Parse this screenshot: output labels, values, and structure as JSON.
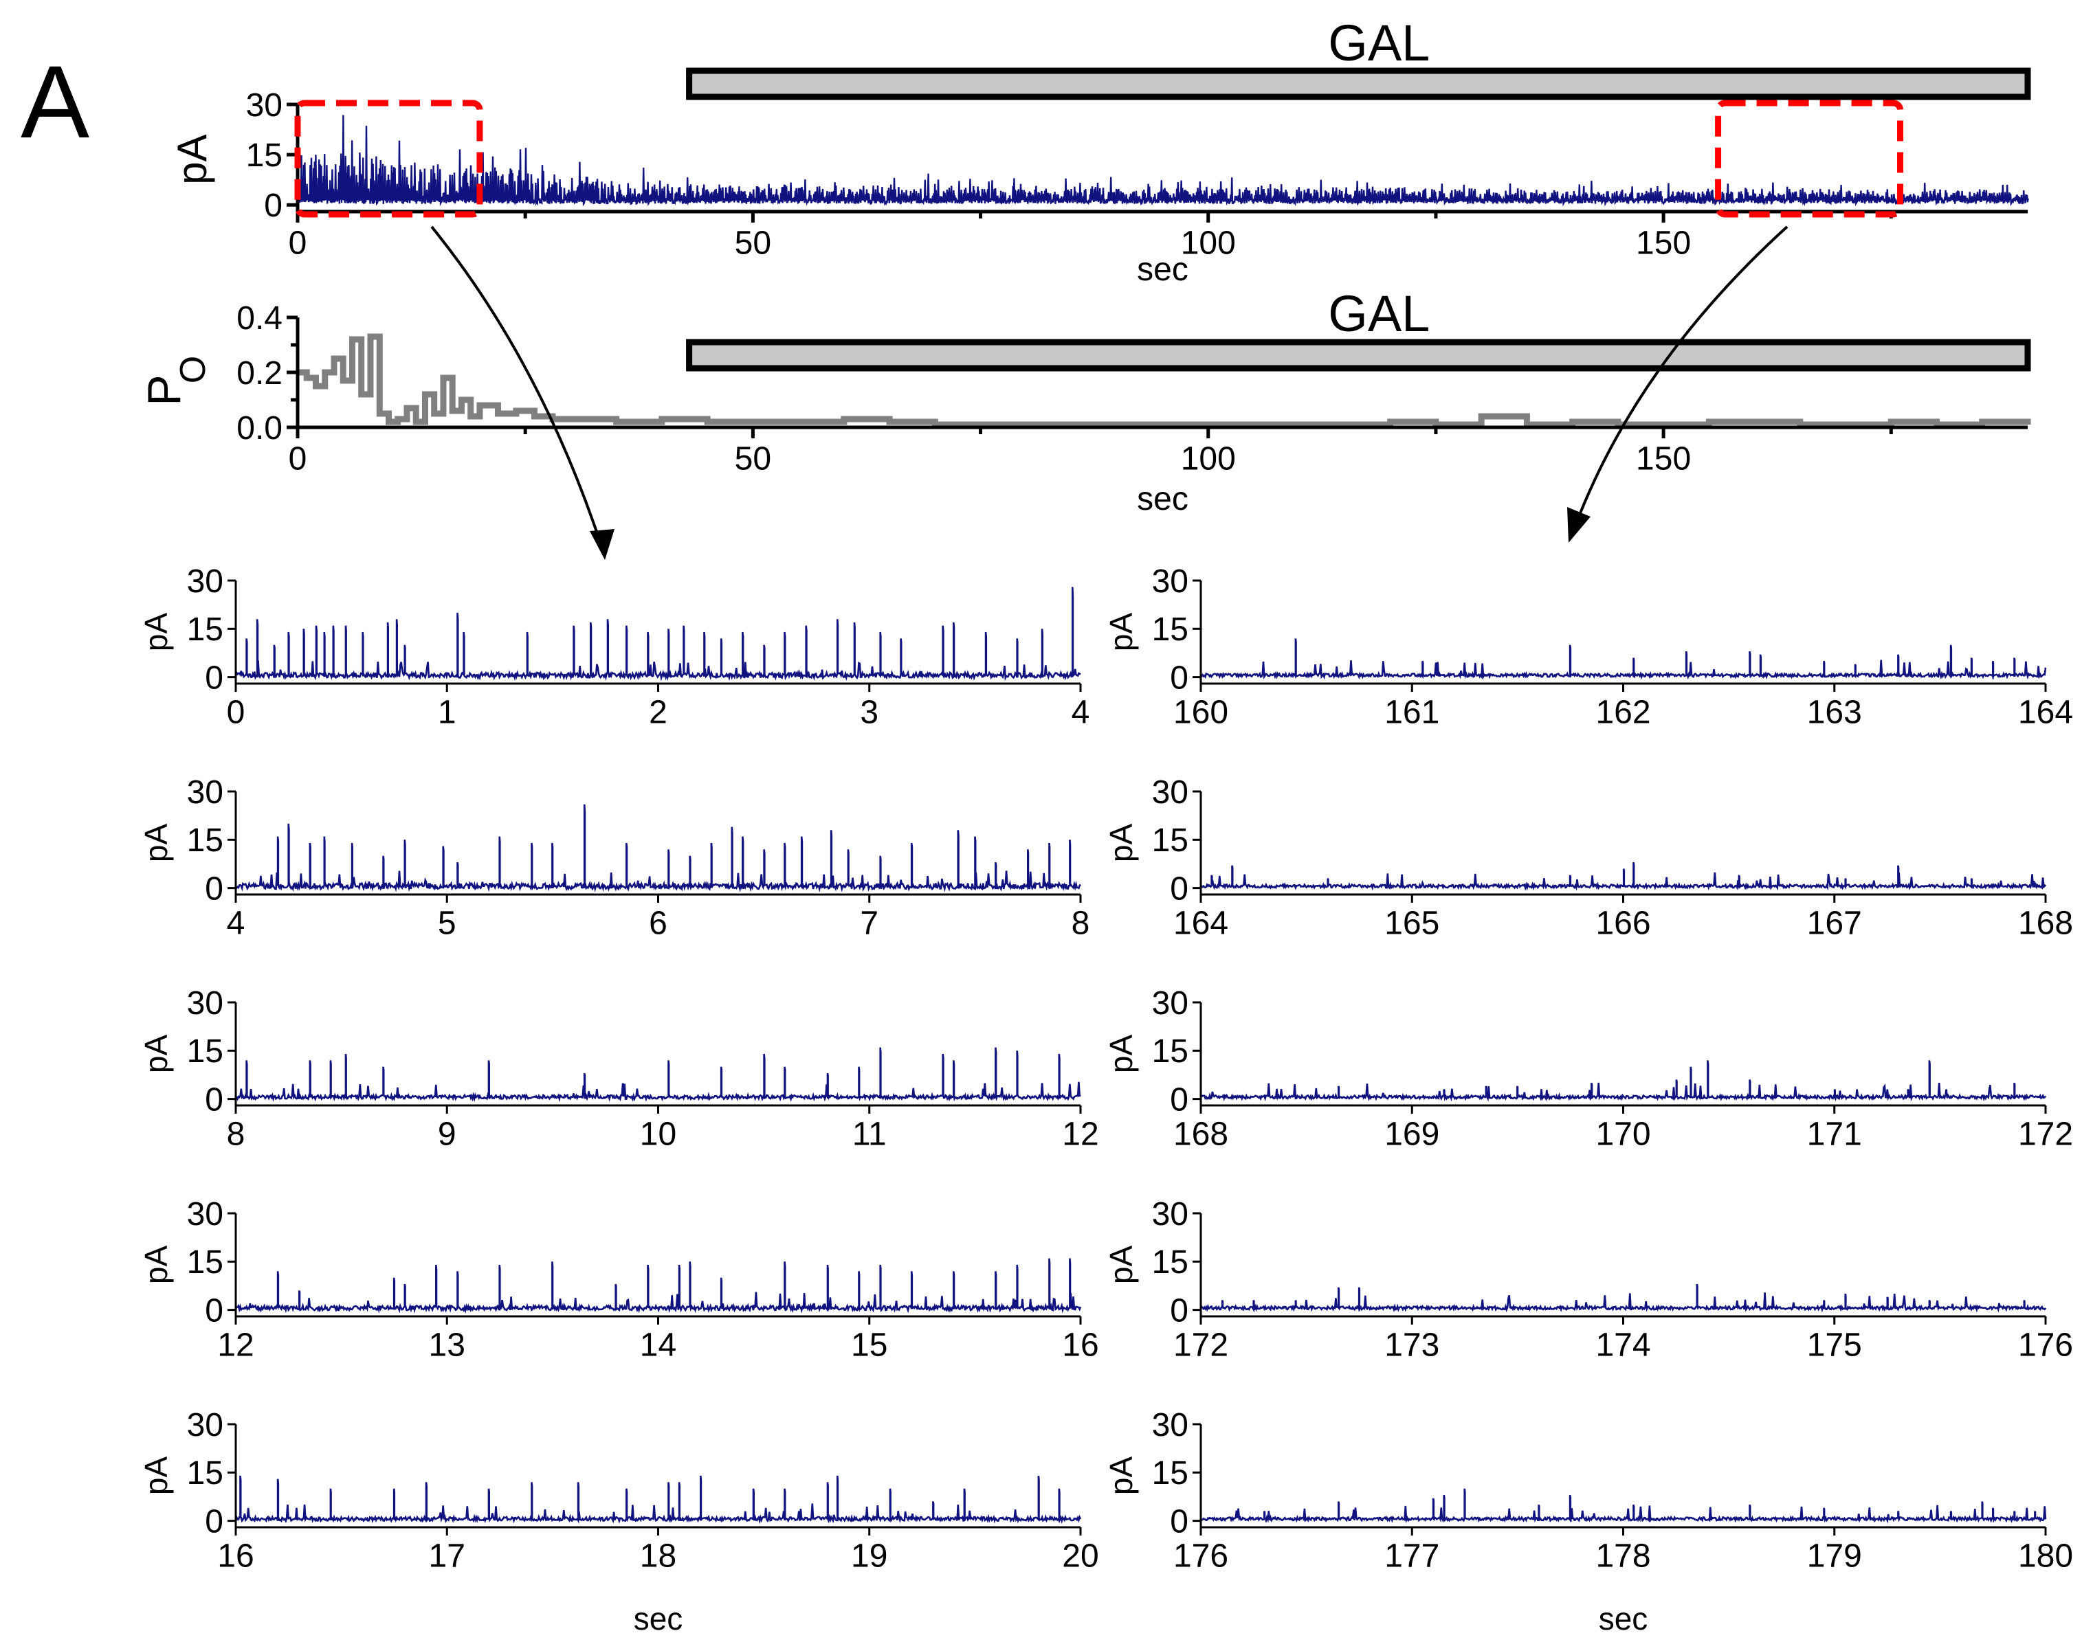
{
  "panel_letter": "A",
  "colors": {
    "trace": "#0f127f",
    "po_trace": "#808080",
    "bar_fill": "#c8c8c8",
    "highlight": "#ff0000",
    "axis": "#000000"
  },
  "chart_data": [
    {
      "id": "overview_current",
      "type": "line",
      "ylabel": "pA",
      "xlabel": "sec",
      "xlim": [
        0,
        190
      ],
      "ylim": [
        -2,
        30
      ],
      "xticks": [
        0,
        50,
        100,
        150
      ],
      "yticks": [
        0,
        15,
        30
      ],
      "treatment_bar": {
        "label": "GAL",
        "x_start": 43,
        "x_end": 190
      },
      "highlighted_ranges": [
        [
          0,
          20
        ],
        [
          156,
          176
        ]
      ],
      "series": [
        {
          "x": [
            0,
            5,
            10,
            15,
            20,
            30,
            40,
            50,
            60,
            80,
            100,
            120,
            140,
            160,
            180,
            190
          ],
          "y": [
            16,
            18,
            15,
            14,
            13,
            9,
            7,
            6,
            6,
            5,
            5,
            5,
            4,
            4,
            4,
            4
          ]
        }
      ]
    },
    {
      "id": "overview_po",
      "type": "line",
      "ylabel": "P",
      "ylabel_sub": "O",
      "xlabel": "sec",
      "xlim": [
        0,
        190
      ],
      "ylim": [
        0,
        0.4
      ],
      "xticks": [
        0,
        50,
        100,
        150
      ],
      "yticks": [
        0.0,
        0.2,
        0.4
      ],
      "ytick_labels": [
        "0.0",
        "0.2",
        "0.4"
      ],
      "treatment_bar": {
        "label": "GAL",
        "x_start": 43,
        "x_end": 190
      },
      "series": [
        {
          "x": [
            0,
            1,
            2,
            3,
            4,
            5,
            6,
            7,
            8,
            9,
            10,
            11,
            12,
            13,
            14,
            15,
            16,
            17,
            18,
            19,
            20,
            22,
            24,
            26,
            28,
            30,
            35,
            40,
            45,
            50,
            55,
            60,
            65,
            70,
            80,
            90,
            100,
            110,
            120,
            125,
            130,
            135,
            140,
            145,
            150,
            155,
            160,
            165,
            170,
            175,
            180,
            185,
            190
          ],
          "y": [
            0.2,
            0.18,
            0.15,
            0.2,
            0.25,
            0.17,
            0.32,
            0.12,
            0.33,
            0.05,
            0.02,
            0.03,
            0.07,
            0.02,
            0.12,
            0.05,
            0.18,
            0.06,
            0.1,
            0.04,
            0.08,
            0.05,
            0.06,
            0.04,
            0.03,
            0.03,
            0.02,
            0.03,
            0.02,
            0.02,
            0.02,
            0.03,
            0.02,
            0.01,
            0.01,
            0.01,
            0.01,
            0.01,
            0.02,
            0.01,
            0.04,
            0.01,
            0.02,
            0.01,
            0.01,
            0.02,
            0.02,
            0.01,
            0.01,
            0.02,
            0.01,
            0.02,
            0.01
          ]
        }
      ]
    },
    {
      "id": "zoom_left",
      "type": "line",
      "ylabel": "pA",
      "xlabel": "sec",
      "ylim": [
        -2,
        30
      ],
      "yticks": [
        0,
        15,
        30
      ],
      "rows": [
        {
          "xlim": [
            0,
            4
          ],
          "xticks": [
            0,
            1,
            2,
            3,
            4
          ],
          "events": [
            0.05,
            0.1,
            0.18,
            0.25,
            0.32,
            0.38,
            0.42,
            0.46,
            0.52,
            0.6,
            0.72,
            0.76,
            0.8,
            1.05,
            1.08,
            1.38,
            1.6,
            1.68,
            1.76,
            1.85,
            1.95,
            2.05,
            2.12,
            2.22,
            2.3,
            2.4,
            2.5,
            2.6,
            2.7,
            2.85,
            2.93,
            3.05,
            3.15,
            3.35,
            3.4,
            3.55,
            3.7,
            3.82,
            3.96
          ],
          "amps": [
            12,
            18,
            10,
            14,
            15,
            16,
            14,
            16,
            16,
            14,
            17,
            18,
            10,
            20,
            14,
            14,
            16,
            17,
            18,
            16,
            14,
            15,
            16,
            14,
            12,
            14,
            10,
            14,
            16,
            18,
            17,
            14,
            12,
            16,
            17,
            14,
            12,
            15,
            28
          ],
          "noise": 0.8
        },
        {
          "xlim": [
            4,
            8
          ],
          "xticks": [
            4,
            5,
            6,
            7,
            8
          ],
          "events": [
            4.2,
            4.25,
            4.35,
            4.42,
            4.55,
            4.7,
            4.8,
            4.98,
            5.05,
            5.25,
            5.4,
            5.5,
            5.65,
            5.85,
            6.05,
            6.15,
            6.25,
            6.35,
            6.4,
            6.5,
            6.6,
            6.68,
            6.82,
            6.9,
            7.05,
            7.2,
            7.42,
            7.5,
            7.6,
            7.75,
            7.85,
            7.95
          ],
          "amps": [
            16,
            20,
            14,
            16,
            14,
            10,
            15,
            13,
            8,
            16,
            14,
            14,
            26,
            14,
            12,
            10,
            14,
            19,
            16,
            12,
            14,
            16,
            18,
            12,
            10,
            14,
            18,
            16,
            8,
            12,
            14,
            15
          ],
          "noise": 0.9
        },
        {
          "xlim": [
            8,
            12
          ],
          "xticks": [
            8,
            9,
            10,
            11,
            12
          ],
          "events": [
            8.05,
            8.35,
            8.45,
            8.52,
            8.7,
            9.2,
            9.65,
            10.05,
            10.3,
            10.5,
            10.6,
            10.8,
            10.95,
            11.05,
            11.35,
            11.4,
            11.6,
            11.7,
            11.9
          ],
          "amps": [
            12,
            12,
            12,
            14,
            10,
            12,
            8,
            12,
            10,
            14,
            10,
            8,
            10,
            16,
            14,
            12,
            16,
            15,
            14
          ],
          "noise": 0.6
        },
        {
          "xlim": [
            12,
            16
          ],
          "xticks": [
            12,
            13,
            14,
            15,
            16
          ],
          "events": [
            12.2,
            12.3,
            12.75,
            12.8,
            12.95,
            13.05,
            13.25,
            13.5,
            13.8,
            13.95,
            14.1,
            14.15,
            14.3,
            14.6,
            14.8,
            14.95,
            15.05,
            15.2,
            15.4,
            15.6,
            15.7,
            15.85,
            15.95
          ],
          "amps": [
            12,
            6,
            10,
            8,
            14,
            12,
            14,
            15,
            8,
            14,
            14,
            15,
            10,
            15,
            14,
            12,
            14,
            12,
            12,
            12,
            14,
            16,
            16
          ],
          "noise": 0.7
        },
        {
          "xlim": [
            16,
            20
          ],
          "xticks": [
            16,
            17,
            18,
            19,
            20
          ],
          "events": [
            16.02,
            16.2,
            16.45,
            16.75,
            16.9,
            17.2,
            17.4,
            17.62,
            17.85,
            18.05,
            18.1,
            18.2,
            18.45,
            18.6,
            18.8,
            18.85,
            19.1,
            19.3,
            19.45,
            19.8,
            19.9
          ],
          "amps": [
            14,
            13,
            10,
            10,
            12,
            10,
            12,
            12,
            10,
            12,
            12,
            14,
            10,
            10,
            12,
            14,
            10,
            6,
            10,
            14,
            10
          ],
          "noise": 0.6
        }
      ]
    },
    {
      "id": "zoom_right",
      "type": "line",
      "ylabel": "pA",
      "xlabel": "sec",
      "ylim": [
        -2,
        30
      ],
      "yticks": [
        0,
        15,
        30
      ],
      "rows": [
        {
          "xlim": [
            160,
            164
          ],
          "xticks": [
            160,
            161,
            162,
            163,
            164
          ],
          "events": [
            160.45,
            161.05,
            161.75,
            162.05,
            162.3,
            162.6,
            162.65,
            162.95,
            163.1,
            163.3,
            163.55,
            163.65,
            163.75,
            163.85
          ],
          "amps": [
            12,
            5,
            10,
            6,
            8,
            8,
            7,
            5,
            4,
            7,
            10,
            6,
            5,
            6
          ],
          "noise": 0.5
        },
        {
          "xlim": [
            164,
            168
          ],
          "xticks": [
            164,
            165,
            166,
            167,
            168
          ],
          "events": [
            164.05,
            164.15,
            164.6,
            165.75,
            166.0,
            166.05,
            166.55,
            167.05,
            167.3,
            167.65
          ],
          "amps": [
            4,
            7,
            3,
            4,
            6,
            8,
            4,
            3,
            7,
            3
          ],
          "noise": 0.5
        },
        {
          "xlim": [
            168,
            172
          ],
          "xticks": [
            168,
            169,
            170,
            171,
            172
          ],
          "events": [
            168.65,
            169.15,
            169.35,
            169.5,
            169.85,
            170.25,
            170.32,
            170.4,
            170.6,
            171.0,
            171.35,
            171.45,
            171.85
          ],
          "amps": [
            4,
            3,
            4,
            4,
            5,
            6,
            10,
            12,
            6,
            3,
            3,
            12,
            5
          ],
          "noise": 0.5
        },
        {
          "xlim": [
            172,
            176
          ],
          "xticks": [
            172,
            173,
            174,
            175,
            176
          ],
          "events": [
            172.1,
            172.25,
            172.45,
            172.65,
            172.75,
            174.35,
            174.95,
            175.05,
            175.25,
            175.45,
            175.9
          ],
          "amps": [
            3,
            3,
            3,
            7,
            7,
            8,
            3,
            5,
            4,
            3,
            3
          ],
          "noise": 0.5
        },
        {
          "xlim": [
            176,
            180
          ],
          "xticks": [
            176,
            177,
            178,
            179,
            180
          ],
          "events": [
            176.3,
            176.65,
            177.1,
            177.15,
            177.25,
            177.6,
            177.75,
            178.05,
            178.6,
            178.95,
            179.3,
            179.55,
            179.7,
            179.75,
            179.85,
            179.95
          ],
          "amps": [
            3,
            6,
            7,
            8,
            10,
            5,
            8,
            5,
            5,
            4,
            3,
            3,
            6,
            4,
            3,
            3
          ],
          "noise": 0.5
        }
      ]
    }
  ]
}
